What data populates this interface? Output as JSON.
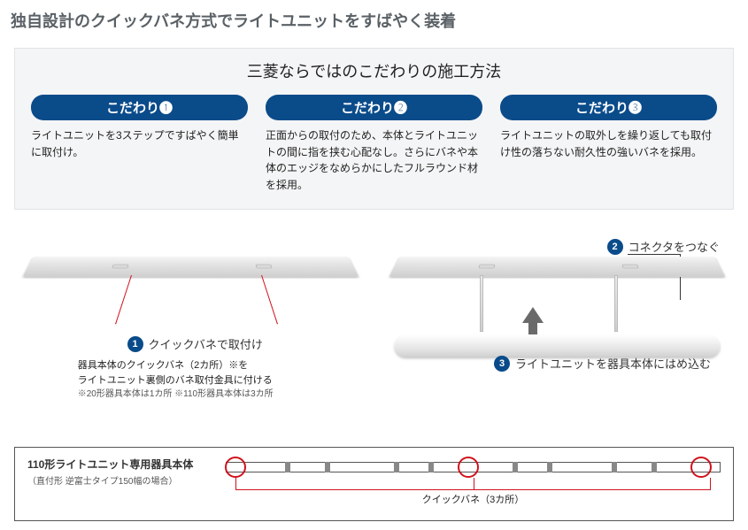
{
  "title": "独自設計のクイックバネ方式でライトユニットをすばやく装着",
  "kodawari": {
    "heading": "三菱ならではのこだわりの施工方法",
    "items": [
      {
        "pill": "こだわり❶",
        "text": "ライトユニットを3ステップですばやく簡単に取付け。"
      },
      {
        "pill": "こだわり❷",
        "text": "正面からの取付のため、本体とライトユニットの間に指を挟む心配なし。さらにバネや本体のエッジをなめらかにしたフルラウンド材を採用。"
      },
      {
        "pill": "こだわり❸",
        "text": "ライトユニットの取外しを繰り返しても取付け性の落ちない耐久性の強いバネを採用。"
      }
    ]
  },
  "steps": {
    "s1": {
      "num": "1",
      "label": "クイックバネで取付け"
    },
    "s2": {
      "num": "2",
      "label": "コネクタをつなぐ"
    },
    "s3": {
      "num": "3",
      "label": "ライトユニットを器具本体にはめ込む"
    }
  },
  "note": {
    "line1": "器具本体のクイックバネ（2カ所）※を",
    "line2": "ライトユニット裏側のバネ取付金具に付ける",
    "line3": "※20形器具本体は1カ所 ※110形器具本体は3カ所"
  },
  "schematic": {
    "title": "110形ライトユニット専用器具本体",
    "subtitle": "（直付形 逆富士タイプ150幅の場合）",
    "caption": "クイックバネ（3カ所）",
    "ring_positions_pct": [
      2,
      49,
      96
    ],
    "tick_positions_pct": [
      12,
      20,
      34,
      41,
      58,
      65,
      78,
      86
    ],
    "colors": {
      "accent_red": "#d0121b",
      "accent_blue": "#0a4b8a"
    }
  }
}
